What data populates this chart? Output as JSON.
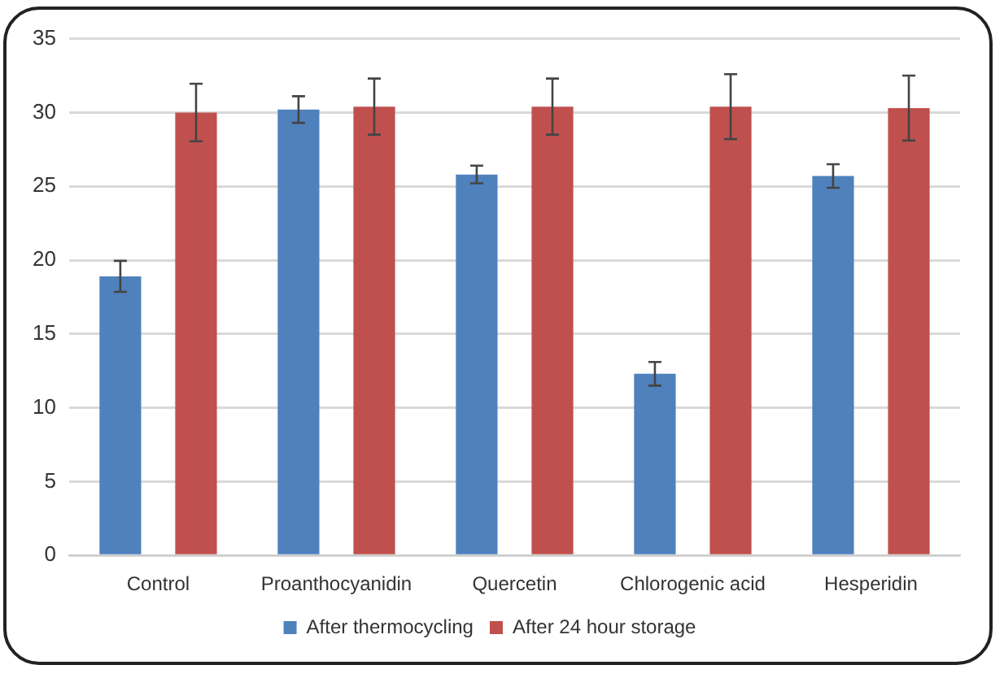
{
  "chart_data": {
    "type": "bar",
    "categories": [
      "Control",
      "Proanthocyanidin",
      "Quercetin",
      "Chlorogenic acid",
      "Hesperidin"
    ],
    "series": [
      {
        "name": "After thermocycling",
        "color": "#4f81bd",
        "values": [
          18.9,
          30.2,
          25.8,
          12.3,
          25.7
        ],
        "errors": [
          1.05,
          0.9,
          0.6,
          0.8,
          0.8
        ]
      },
      {
        "name": "After 24 hour storage",
        "color": "#c0504d",
        "values": [
          30,
          30.4,
          30.4,
          30.4,
          30.3
        ],
        "errors": [
          1.95,
          1.9,
          1.9,
          2.2,
          2.2
        ]
      }
    ],
    "ylim": [
      0,
      35
    ],
    "yticks": [
      0,
      5,
      10,
      15,
      20,
      25,
      30,
      35
    ],
    "grid": "y",
    "legend": "bottom"
  }
}
